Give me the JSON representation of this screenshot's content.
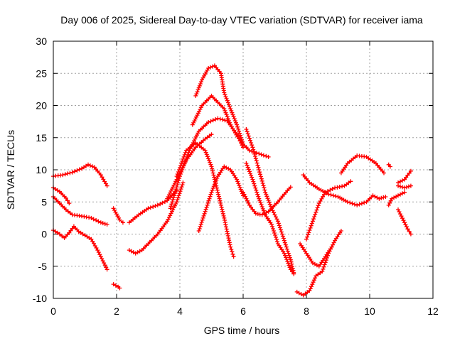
{
  "chart_data": {
    "type": "scatter",
    "title": "Day 006 of 2025, Sidereal Day-to-day VTEC variation (SDTVAR) for receiver iama",
    "xlabel": "GPS time / hours",
    "ylabel": "SDTVAR / TECUs",
    "xlim": [
      0,
      12
    ],
    "ylim": [
      -10,
      30
    ],
    "xticks": [
      0,
      2,
      4,
      6,
      8,
      10,
      12
    ],
    "yticks": [
      -10,
      -5,
      0,
      5,
      10,
      15,
      20,
      25,
      30
    ],
    "grid": true,
    "marker": "+",
    "color": "#ff0000",
    "series": [
      {
        "name": "s1",
        "points": [
          [
            0.0,
            9.0
          ],
          [
            0.3,
            9.2
          ],
          [
            0.6,
            9.6
          ],
          [
            0.9,
            10.2
          ],
          [
            1.1,
            10.8
          ],
          [
            1.3,
            10.4
          ],
          [
            1.5,
            9.2
          ],
          [
            1.7,
            7.5
          ]
        ]
      },
      {
        "name": "s2",
        "points": [
          [
            0.0,
            7.2
          ],
          [
            0.2,
            6.6
          ],
          [
            0.4,
            5.6
          ],
          [
            0.5,
            4.8
          ]
        ]
      },
      {
        "name": "s3",
        "points": [
          [
            0.0,
            5.8
          ],
          [
            0.2,
            4.8
          ],
          [
            0.4,
            3.8
          ],
          [
            0.6,
            3.0
          ],
          [
            0.9,
            2.8
          ],
          [
            1.2,
            2.5
          ],
          [
            1.5,
            1.8
          ],
          [
            1.7,
            1.5
          ]
        ]
      },
      {
        "name": "s4",
        "points": [
          [
            0.0,
            0.6
          ],
          [
            0.2,
            0.0
          ],
          [
            0.35,
            -0.6
          ],
          [
            0.5,
            0.2
          ],
          [
            0.65,
            1.2
          ],
          [
            0.8,
            0.4
          ],
          [
            1.0,
            -0.2
          ],
          [
            1.2,
            -0.8
          ],
          [
            1.4,
            -2.5
          ],
          [
            1.6,
            -4.5
          ],
          [
            1.7,
            -5.5
          ]
        ]
      },
      {
        "name": "s5",
        "points": [
          [
            1.9,
            -7.8
          ],
          [
            2.05,
            -8.2
          ],
          [
            2.1,
            -8.4
          ]
        ]
      },
      {
        "name": "s6",
        "points": [
          [
            1.9,
            4.0
          ],
          [
            2.1,
            2.2
          ],
          [
            2.2,
            1.8
          ]
        ]
      },
      {
        "name": "s7",
        "points": [
          [
            2.4,
            1.8
          ],
          [
            2.7,
            3.0
          ],
          [
            3.0,
            4.0
          ],
          [
            3.3,
            4.5
          ],
          [
            3.6,
            5.2
          ],
          [
            3.9,
            6.8
          ]
        ]
      },
      {
        "name": "s8",
        "points": [
          [
            2.4,
            -2.5
          ],
          [
            2.6,
            -3.0
          ],
          [
            2.8,
            -2.5
          ],
          [
            3.0,
            -1.5
          ],
          [
            3.3,
            0.0
          ],
          [
            3.6,
            2.0
          ],
          [
            3.9,
            5.0
          ],
          [
            4.1,
            8.0
          ]
        ]
      },
      {
        "name": "s9",
        "points": [
          [
            3.6,
            5.5
          ],
          [
            3.9,
            8.5
          ],
          [
            4.2,
            11.5
          ],
          [
            4.5,
            13.5
          ],
          [
            4.8,
            14.8
          ],
          [
            5.0,
            15.5
          ]
        ]
      },
      {
        "name": "s10",
        "points": [
          [
            3.7,
            4.0
          ],
          [
            4.0,
            9.0
          ],
          [
            4.3,
            13.0
          ],
          [
            4.6,
            16.0
          ],
          [
            4.9,
            17.4
          ],
          [
            5.2,
            18.0
          ],
          [
            5.5,
            17.6
          ],
          [
            5.8,
            15.5
          ],
          [
            6.0,
            13.5
          ]
        ]
      },
      {
        "name": "s11",
        "points": [
          [
            3.9,
            9.0
          ],
          [
            4.2,
            13.0
          ],
          [
            4.5,
            14.2
          ],
          [
            4.8,
            13.0
          ],
          [
            5.0,
            10.5
          ],
          [
            5.2,
            6.5
          ],
          [
            5.4,
            2.5
          ],
          [
            5.6,
            -2.0
          ],
          [
            5.7,
            -3.5
          ]
        ]
      },
      {
        "name": "s12",
        "points": [
          [
            4.4,
            17.0
          ],
          [
            4.7,
            20.0
          ],
          [
            5.0,
            21.5
          ],
          [
            5.2,
            20.5
          ],
          [
            5.4,
            19.5
          ],
          [
            5.6,
            17.0
          ],
          [
            5.9,
            14.5
          ],
          [
            6.2,
            13.0
          ],
          [
            6.5,
            12.5
          ],
          [
            6.8,
            12.0
          ]
        ]
      },
      {
        "name": "s13",
        "points": [
          [
            4.6,
            0.5
          ],
          [
            4.8,
            3.5
          ],
          [
            5.0,
            6.5
          ],
          [
            5.2,
            9.0
          ],
          [
            5.4,
            10.5
          ],
          [
            5.6,
            10.0
          ],
          [
            5.8,
            8.5
          ],
          [
            6.0,
            6.0
          ]
        ]
      },
      {
        "name": "s14",
        "points": [
          [
            4.5,
            21.5
          ],
          [
            4.7,
            24.0
          ],
          [
            4.9,
            25.8
          ],
          [
            5.1,
            26.2
          ],
          [
            5.3,
            25.0
          ],
          [
            5.4,
            22.0
          ],
          [
            5.6,
            19.5
          ],
          [
            5.8,
            17.0
          ],
          [
            6.0,
            14.0
          ]
        ]
      },
      {
        "name": "s15",
        "points": [
          [
            6.0,
            6.5
          ],
          [
            6.2,
            4.5
          ],
          [
            6.4,
            3.2
          ],
          [
            6.6,
            3.0
          ],
          [
            6.8,
            3.5
          ],
          [
            7.1,
            5.0
          ],
          [
            7.3,
            6.2
          ],
          [
            7.5,
            7.3
          ]
        ]
      },
      {
        "name": "s16",
        "points": [
          [
            6.1,
            16.3
          ],
          [
            6.3,
            13.5
          ],
          [
            6.5,
            10.0
          ],
          [
            6.7,
            6.5
          ],
          [
            6.9,
            4.0
          ],
          [
            7.1,
            2.0
          ],
          [
            7.3,
            -1.0
          ],
          [
            7.5,
            -4.0
          ],
          [
            7.6,
            -6.0
          ]
        ]
      },
      {
        "name": "s17",
        "points": [
          [
            6.1,
            11.0
          ],
          [
            6.3,
            8.5
          ],
          [
            6.5,
            5.5
          ],
          [
            6.7,
            3.0
          ],
          [
            6.9,
            1.5
          ],
          [
            7.1,
            -1.5
          ],
          [
            7.3,
            -3.0
          ],
          [
            7.5,
            -5.5
          ],
          [
            7.6,
            -6.2
          ]
        ]
      },
      {
        "name": "s18",
        "points": [
          [
            7.7,
            -9.0
          ],
          [
            7.9,
            -9.5
          ],
          [
            8.1,
            -8.8
          ],
          [
            8.3,
            -6.5
          ],
          [
            8.5,
            -5.8
          ],
          [
            8.7,
            -3.0
          ],
          [
            8.9,
            -1.0
          ],
          [
            9.1,
            0.5
          ]
        ]
      },
      {
        "name": "s19",
        "points": [
          [
            7.8,
            -1.5
          ],
          [
            8.0,
            -3.0
          ],
          [
            8.2,
            -4.5
          ],
          [
            8.4,
            -5.0
          ],
          [
            8.6,
            -3.5
          ],
          [
            8.8,
            -2.0
          ]
        ]
      },
      {
        "name": "s20",
        "points": [
          [
            7.9,
            9.2
          ],
          [
            8.1,
            8.0
          ],
          [
            8.4,
            7.0
          ],
          [
            8.7,
            6.2
          ],
          [
            9.0,
            5.8
          ],
          [
            9.3,
            5.0
          ],
          [
            9.6,
            4.5
          ],
          [
            9.9,
            5.0
          ],
          [
            10.1,
            6.0
          ],
          [
            10.3,
            5.5
          ],
          [
            10.5,
            5.8
          ]
        ]
      },
      {
        "name": "s21",
        "points": [
          [
            8.0,
            -0.8
          ],
          [
            8.2,
            2.0
          ],
          [
            8.4,
            4.8
          ],
          [
            8.6,
            6.5
          ],
          [
            8.9,
            7.2
          ],
          [
            9.2,
            7.5
          ],
          [
            9.4,
            8.2
          ]
        ]
      },
      {
        "name": "s22",
        "points": [
          [
            9.1,
            9.5
          ],
          [
            9.3,
            11.0
          ],
          [
            9.6,
            12.2
          ],
          [
            9.9,
            12.0
          ],
          [
            10.2,
            11.0
          ],
          [
            10.45,
            9.5
          ]
        ]
      },
      {
        "name": "s23",
        "points": [
          [
            10.6,
            10.8
          ],
          [
            10.65,
            10.5
          ]
        ]
      },
      {
        "name": "s24",
        "points": [
          [
            10.6,
            4.5
          ],
          [
            10.7,
            5.5
          ],
          [
            10.9,
            6.0
          ],
          [
            11.1,
            6.5
          ]
        ]
      },
      {
        "name": "s25",
        "points": [
          [
            10.9,
            3.8
          ],
          [
            11.0,
            2.8
          ],
          [
            11.1,
            1.8
          ],
          [
            11.2,
            0.8
          ],
          [
            11.3,
            0.0
          ]
        ]
      },
      {
        "name": "s26",
        "points": [
          [
            10.9,
            7.5
          ],
          [
            11.1,
            7.2
          ],
          [
            11.3,
            7.5
          ]
        ]
      },
      {
        "name": "s27",
        "points": [
          [
            10.9,
            8.0
          ],
          [
            11.1,
            8.5
          ],
          [
            11.3,
            9.8
          ]
        ]
      }
    ]
  }
}
